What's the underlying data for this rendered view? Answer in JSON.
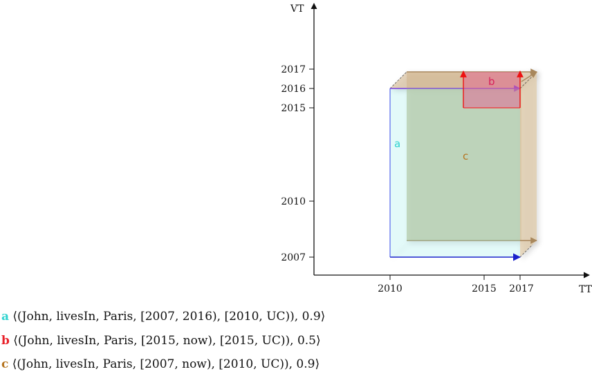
{
  "axes": {
    "x_label": "TT",
    "y_label": "VT",
    "x_ticks": [
      "2010",
      "2015",
      "2017"
    ],
    "y_ticks": [
      "2017",
      "2016",
      "2015",
      "2010",
      "2007"
    ]
  },
  "regions": [
    {
      "id": "a",
      "label": "a",
      "tt_start": "2010",
      "tt_end": "2017",
      "vt_start": "2007",
      "vt_end": "2016",
      "color": "#2fd3cf",
      "edge_color": "#4455ee"
    },
    {
      "id": "b",
      "label": "b",
      "tt_start": "2015",
      "tt_end": "2017",
      "vt_start": "2015",
      "vt_end": "2017",
      "color": "#e8306a",
      "edge_color": "#ee2222"
    },
    {
      "id": "c",
      "label": "c",
      "tt_start": "2010",
      "tt_end": "UC",
      "vt_start": "2007",
      "vt_end": "now",
      "color": "#c07a2a",
      "edge_color": "#a0845a"
    }
  ],
  "legend": [
    {
      "key": "a",
      "color": "#2fd3cf",
      "text": "⟨(John, livesIn, Paris, [2007, 2016), [2010, UC)), 0.9⟩"
    },
    {
      "key": "b",
      "color": "#e8212a",
      "text": "⟨(John, livesIn, Paris, [2015, now), [2015, UC)), 0.5⟩"
    },
    {
      "key": "c",
      "color": "#b5741f",
      "text": "⟨(John, livesIn, Paris, [2007, now), [2010, UC)), 0.9⟩"
    }
  ]
}
